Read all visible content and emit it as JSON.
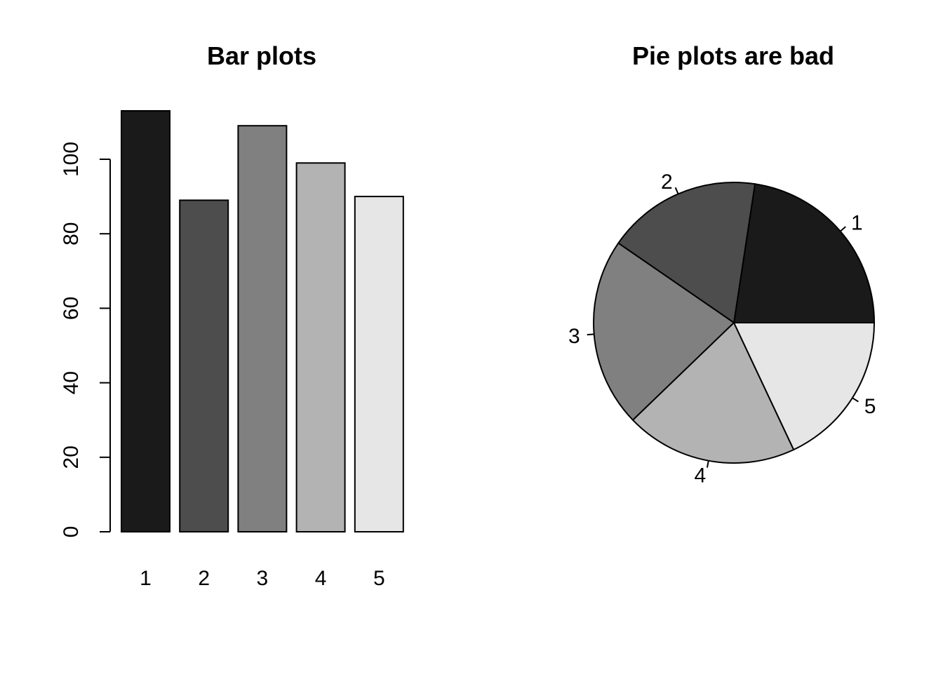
{
  "chart_data": [
    {
      "type": "bar",
      "title": "Bar plots",
      "categories": [
        "1",
        "2",
        "3",
        "4",
        "5"
      ],
      "values": [
        113,
        89,
        109,
        99,
        90
      ],
      "colors": [
        "#1a1a1a",
        "#4d4d4d",
        "#808080",
        "#b3b3b3",
        "#e6e6e6"
      ],
      "yticks": [
        "0",
        "20",
        "40",
        "60",
        "80",
        "100"
      ],
      "ylim": [
        0,
        113
      ],
      "grid": false
    },
    {
      "type": "pie",
      "title": "Pie plots are bad",
      "labels": [
        "1",
        "2",
        "3",
        "4",
        "5"
      ],
      "values": [
        113,
        89,
        109,
        99,
        90
      ],
      "colors": [
        "#1a1a1a",
        "#4d4d4d",
        "#808080",
        "#b3b3b3",
        "#e6e6e6"
      ],
      "start_angle_deg": 0,
      "direction": "counterclockwise"
    }
  ]
}
